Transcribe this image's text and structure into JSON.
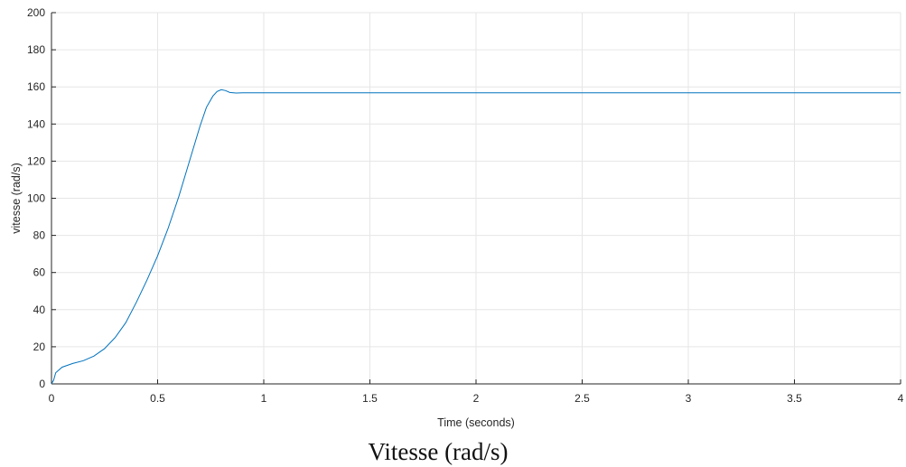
{
  "chart_data": {
    "type": "line",
    "title": "",
    "xlabel": "Time (seconds)",
    "ylabel": "vitesse (rad/s)",
    "xlim": [
      0,
      4
    ],
    "ylim": [
      0,
      200
    ],
    "xticks": [
      0,
      0.5,
      1,
      1.5,
      2,
      2.5,
      3,
      3.5,
      4
    ],
    "xtick_labels": [
      "0",
      "0.5",
      "1",
      "1.5",
      "2",
      "2.5",
      "3",
      "3.5",
      "4"
    ],
    "yticks": [
      0,
      20,
      40,
      60,
      80,
      100,
      120,
      140,
      160,
      180,
      200
    ],
    "ytick_labels": [
      "0",
      "20",
      "40",
      "60",
      "80",
      "100",
      "120",
      "140",
      "160",
      "180",
      "200"
    ],
    "grid": true,
    "line_color": "#0072bd",
    "series": [
      {
        "x": [
          0,
          0.01,
          0.02,
          0.05,
          0.1,
          0.15,
          0.2,
          0.25,
          0.3,
          0.35,
          0.4,
          0.45,
          0.5,
          0.55,
          0.6,
          0.65,
          0.7,
          0.73,
          0.76,
          0.78,
          0.8,
          0.82,
          0.84,
          0.87,
          0.9,
          0.95,
          1.0,
          1.5,
          2.0,
          2.5,
          3.0,
          3.5,
          4.0
        ],
        "y": [
          0,
          2,
          6,
          9,
          11,
          12.5,
          15,
          19,
          25,
          33,
          44,
          56,
          69,
          84,
          101,
          120,
          139,
          149,
          155,
          157.5,
          158.5,
          158,
          157,
          156.7,
          156.8,
          156.8,
          156.8,
          156.8,
          156.8,
          156.8,
          156.8,
          156.8,
          156.8
        ]
      }
    ]
  },
  "caption": "Vitesse (rad/s)"
}
